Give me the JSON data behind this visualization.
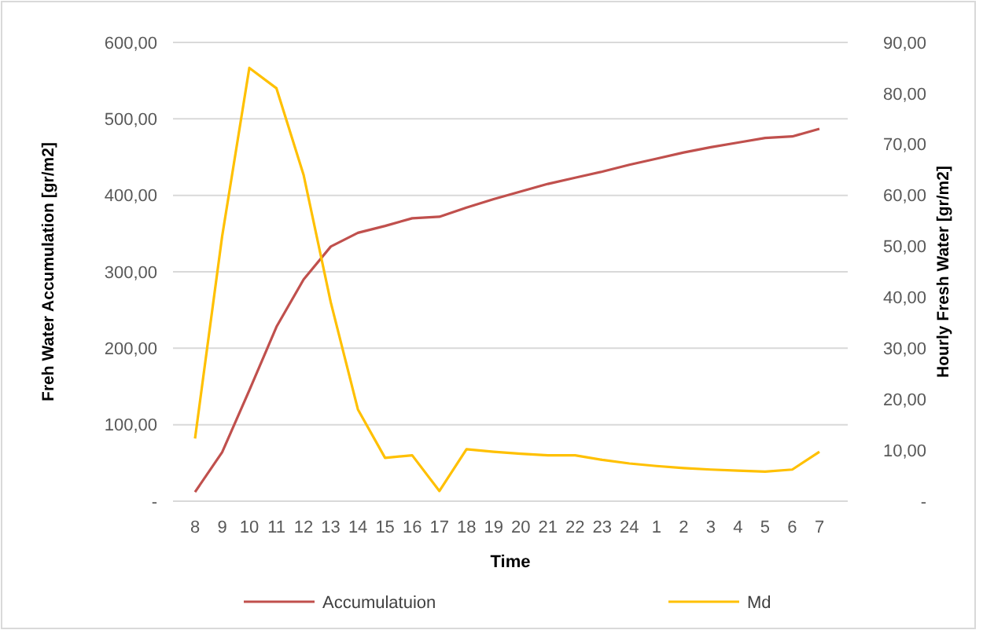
{
  "chart_data": {
    "type": "line",
    "xlabel": "Time",
    "ylabel": "Freh Water Accumulation [gr/m2]",
    "y2label": "Hourly Fresh Water [gr/m2]",
    "categories": [
      "8",
      "9",
      "10",
      "11",
      "12",
      "13",
      "14",
      "15",
      "16",
      "17",
      "18",
      "19",
      "20",
      "21",
      "22",
      "23",
      "24",
      "1",
      "2",
      "3",
      "4",
      "5",
      "6",
      "7"
    ],
    "series": [
      {
        "name": "Accumulatuion",
        "color": "#c0504d",
        "values": [
          12,
          64,
          145,
          228,
          290,
          333,
          351,
          360,
          370,
          372,
          384,
          395,
          405,
          415,
          423,
          431,
          440,
          448,
          456,
          463,
          469,
          475,
          477,
          487
        ]
      },
      {
        "name": "Md",
        "color": "#ffc000",
        "axis": "y2",
        "values": [
          12.3,
          52,
          85,
          81,
          64,
          39,
          18,
          8.5,
          9,
          2,
          10.2,
          9.7,
          9.3,
          9,
          9,
          8.1,
          7.4,
          6.9,
          6.5,
          6.2,
          6,
          5.8,
          6.2,
          9.7
        ]
      }
    ],
    "ylim": [
      0,
      600
    ],
    "yticks": [
      {
        "value": 0,
        "label": "-"
      },
      {
        "value": 100,
        "label": "100,00"
      },
      {
        "value": 200,
        "label": "200,00"
      },
      {
        "value": 300,
        "label": "300,00"
      },
      {
        "value": 400,
        "label": "400,00"
      },
      {
        "value": 500,
        "label": "500,00"
      },
      {
        "value": 600,
        "label": "600,00"
      }
    ],
    "y2lim": [
      0,
      90
    ],
    "y2ticks": [
      {
        "value": 0,
        "label": "-"
      },
      {
        "value": 10,
        "label": "10,00"
      },
      {
        "value": 20,
        "label": "20,00"
      },
      {
        "value": 30,
        "label": "30,00"
      },
      {
        "value": 40,
        "label": "40,00"
      },
      {
        "value": 50,
        "label": "50,00"
      },
      {
        "value": 60,
        "label": "60,00"
      },
      {
        "value": 70,
        "label": "70,00"
      },
      {
        "value": 80,
        "label": "80,00"
      },
      {
        "value": 90,
        "label": "90,00"
      }
    ],
    "grid": "y",
    "legend": "bottom",
    "marker": "none",
    "line_style": "solid"
  }
}
